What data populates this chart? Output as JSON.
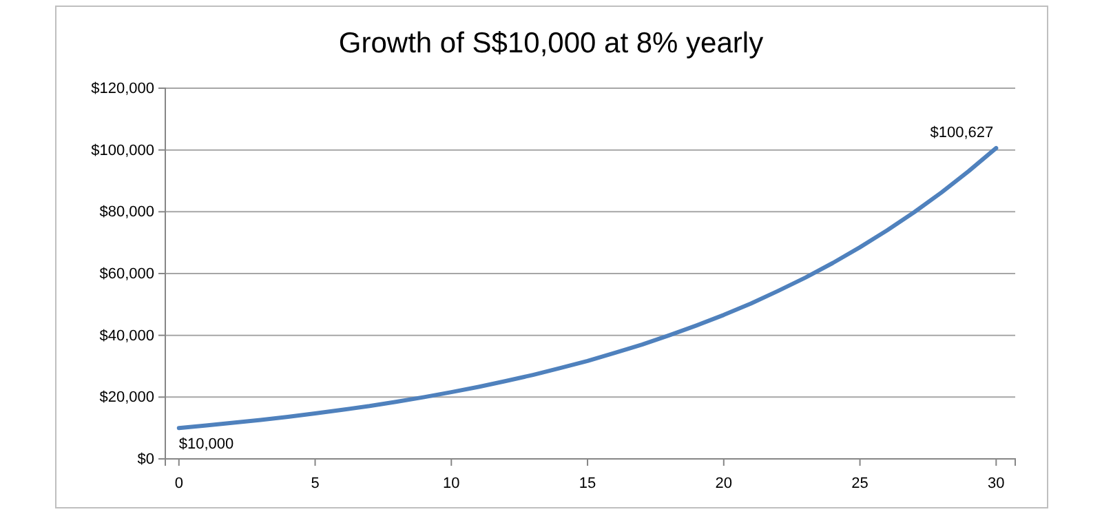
{
  "chart_data": {
    "type": "line",
    "title": "Growth of S$10,000 at 8% yearly",
    "x": [
      0,
      1,
      2,
      3,
      4,
      5,
      6,
      7,
      8,
      9,
      10,
      11,
      12,
      13,
      14,
      15,
      16,
      17,
      18,
      19,
      20,
      21,
      22,
      23,
      24,
      25,
      26,
      27,
      28,
      29,
      30
    ],
    "series": [
      {
        "color": "#4f81bd",
        "values": [
          10000,
          10800,
          11700,
          12600,
          13600,
          14700,
          15900,
          17100,
          18500,
          20000,
          21600,
          23300,
          25200,
          27200,
          29400,
          31700,
          34300,
          37000,
          40000,
          43200,
          46600,
          50300,
          54400,
          58700,
          63400,
          68500,
          74000,
          79900,
          86300,
          93200,
          100627
        ],
        "value_labels": [
          "$10,000",
          null,
          null,
          null,
          null,
          null,
          null,
          null,
          null,
          null,
          null,
          null,
          null,
          null,
          null,
          null,
          null,
          null,
          null,
          null,
          null,
          null,
          null,
          null,
          null,
          null,
          null,
          null,
          null,
          null,
          "$100,627"
        ]
      }
    ],
    "xlim": [
      -0.5,
      30.7
    ],
    "xticks": [
      0,
      5,
      10,
      15,
      20,
      25,
      30
    ],
    "ylim": [
      0,
      120000
    ],
    "yticks": [
      {
        "value": 0,
        "label": "$0"
      },
      {
        "value": 20000,
        "label": "$20,000"
      },
      {
        "value": 40000,
        "label": "$40,000"
      },
      {
        "value": 60000,
        "label": "$60,000"
      },
      {
        "value": 80000,
        "label": "$80,000"
      },
      {
        "value": 100000,
        "label": "$100,000"
      },
      {
        "value": 120000,
        "label": "$120,000"
      }
    ],
    "grid": "y",
    "marker": "none",
    "line_style": "solid"
  }
}
